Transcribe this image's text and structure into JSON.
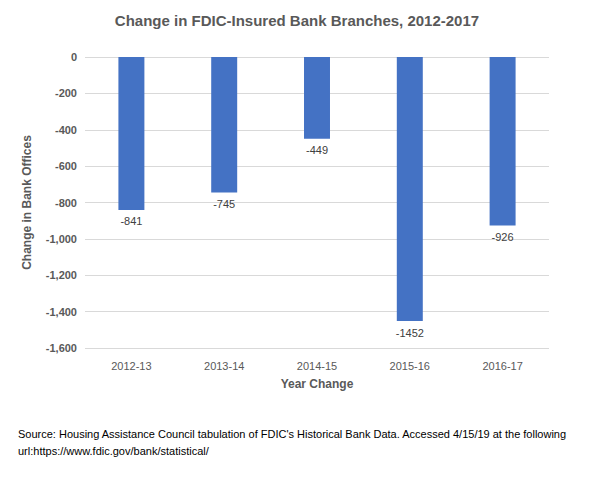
{
  "chart_data": {
    "type": "bar",
    "title": "Change in FDIC-Insured Bank Branches, 2012-2017",
    "x_label": "Year Change",
    "y_label": "Change in Bank Offices",
    "categories": [
      "2012-13",
      "2013-14",
      "2014-15",
      "2015-16",
      "2016-17"
    ],
    "values": [
      -841,
      -745,
      -449,
      -1452,
      -926
    ],
    "color": "#4472c4",
    "ylim": [
      -1600,
      0
    ],
    "yticks": [
      -1600,
      -1400,
      -1200,
      -1000,
      -800,
      -600,
      -400,
      -200,
      0
    ],
    "grid": true,
    "data_labels": true,
    "note": "Source: Housing Assistance Council tabulation of FDIC's Historical Bank Data. Accessed 4/15/19 at the following url:https://www.fdic.gov/bank/statistical/"
  }
}
